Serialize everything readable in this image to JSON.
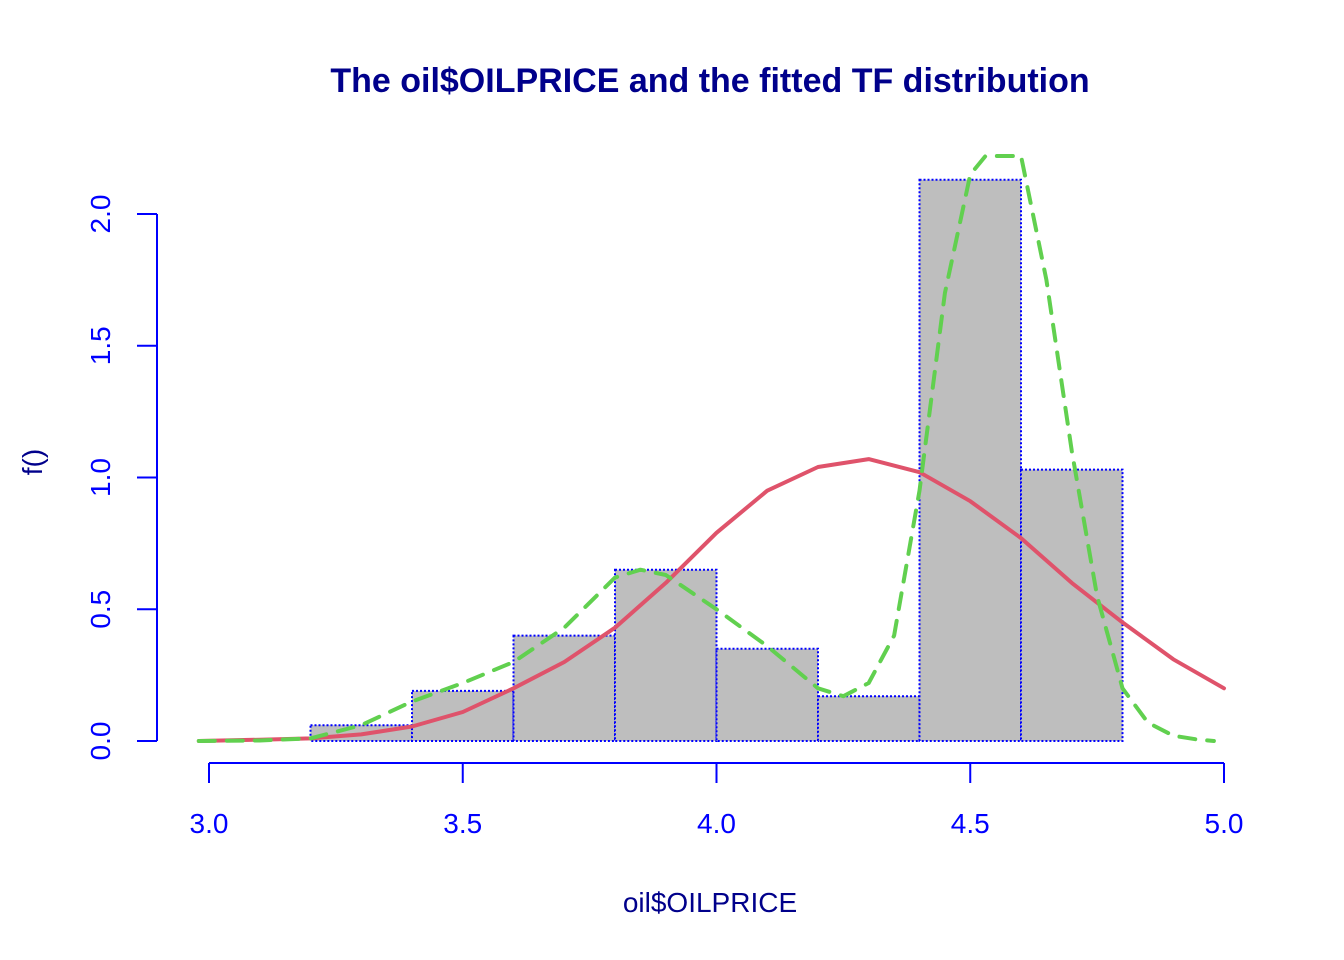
{
  "chart_data": {
    "type": "bar",
    "title": "The oil$OILPRICE and the fitted TF distribution",
    "xlabel": "oil$OILPRICE",
    "ylabel": "f()",
    "xlim": [
      3.0,
      5.0
    ],
    "ylim": [
      0.0,
      2.2
    ],
    "x_ticks": [
      "3.0",
      "3.5",
      "4.0",
      "4.5",
      "5.0"
    ],
    "y_ticks": [
      "0.0",
      "0.5",
      "1.0",
      "1.5",
      "2.0"
    ],
    "histogram": {
      "bin_edges": [
        3.2,
        3.4,
        3.6,
        3.8,
        4.0,
        4.2,
        4.4,
        4.6,
        4.8
      ],
      "density": [
        0.06,
        0.19,
        0.4,
        0.65,
        0.35,
        0.17,
        2.13,
        1.03
      ],
      "fill_color": "#bebebe",
      "border_color": "#0000ff"
    },
    "series": [
      {
        "style": "solid",
        "color": "#df536b",
        "x": [
          2.98,
          3.1,
          3.2,
          3.3,
          3.4,
          3.5,
          3.6,
          3.7,
          3.8,
          3.9,
          4.0,
          4.1,
          4.2,
          4.3,
          4.4,
          4.5,
          4.6,
          4.7,
          4.8,
          4.9,
          5.0
        ],
        "y": [
          0.0,
          0.005,
          0.01,
          0.025,
          0.055,
          0.11,
          0.2,
          0.3,
          0.43,
          0.6,
          0.79,
          0.95,
          1.04,
          1.07,
          1.02,
          0.91,
          0.77,
          0.6,
          0.45,
          0.31,
          0.2
        ]
      },
      {
        "style": "dashed",
        "color": "#61d04f",
        "x": [
          2.98,
          3.1,
          3.2,
          3.3,
          3.4,
          3.5,
          3.6,
          3.7,
          3.8,
          3.85,
          3.9,
          4.0,
          4.1,
          4.2,
          4.25,
          4.3,
          4.35,
          4.4,
          4.45,
          4.5,
          4.53,
          4.6,
          4.65,
          4.7,
          4.75,
          4.8,
          4.85,
          4.9,
          4.95,
          4.98
        ],
        "y": [
          0.0,
          0.002,
          0.01,
          0.06,
          0.15,
          0.22,
          0.3,
          0.43,
          0.62,
          0.65,
          0.63,
          0.5,
          0.36,
          0.2,
          0.17,
          0.22,
          0.4,
          0.95,
          1.7,
          2.15,
          2.22,
          2.22,
          1.75,
          1.1,
          0.55,
          0.2,
          0.07,
          0.02,
          0.005,
          0.0
        ]
      }
    ]
  }
}
